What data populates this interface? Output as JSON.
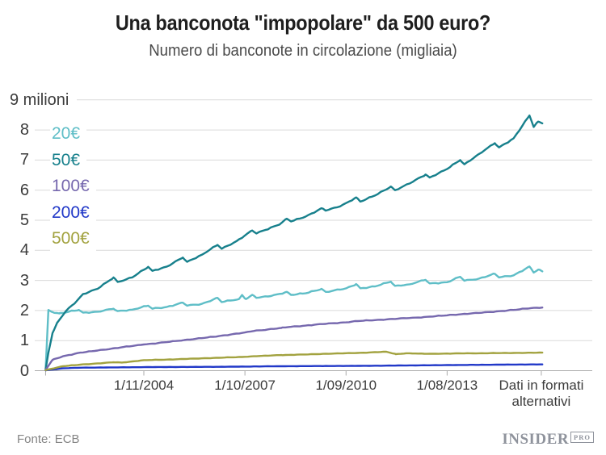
{
  "header": {
    "title": "Una banconota \"impopolare\" da 500 euro?",
    "subtitle": "Numero di banconote in circolazione (migliaia)"
  },
  "footer": {
    "source": "Fonte: ECB",
    "brand": "INSIDER",
    "brand_suffix": "PRO"
  },
  "colors": {
    "grid": "#dadada",
    "axis": "#ababab",
    "text": "#3c3c3c",
    "series_20": "#5fbec7",
    "series_50": "#17808c",
    "series_100": "#7668ae",
    "series_200": "#2138c8",
    "series_500": "#a2a23f"
  },
  "chart_data": {
    "type": "line",
    "title": "Una banconota \"impopolare\" da 500 euro?",
    "subtitle": "Numero di banconote in circolazione (migliaia)",
    "y_top_label": "9 milioni",
    "ylim": [
      0,
      9
    ],
    "y_ticks": [
      "0",
      "1",
      "2",
      "3",
      "4",
      "5",
      "6",
      "7",
      "8"
    ],
    "grid": true,
    "legend_position": "top-left",
    "x_ticks": [
      {
        "label": "1/11/2004",
        "year": 2004.833,
        "link": false
      },
      {
        "label": "1/10/2007",
        "year": 2007.75,
        "link": false
      },
      {
        "label": "1/09/2010",
        "year": 2010.667,
        "link": false
      },
      {
        "label": "1/08/2013",
        "year": 2013.583,
        "link": false
      },
      {
        "label": "Dati in formati alternativi",
        "year": 2016.3,
        "link": true
      }
    ],
    "x_range_years": [
      2001.75,
      2017.8
    ],
    "series": [
      {
        "name": "20€",
        "color": "#5fbec7",
        "wiggle": 0.022,
        "points": [
          [
            2002.0,
            0.05
          ],
          [
            2002.08,
            2.02
          ],
          [
            2002.2,
            1.95
          ],
          [
            2002.4,
            1.9
          ],
          [
            2002.96,
            2.02
          ],
          [
            2003.08,
            1.93
          ],
          [
            2003.5,
            1.96
          ],
          [
            2003.96,
            2.06
          ],
          [
            2004.08,
            1.98
          ],
          [
            2004.5,
            2.03
          ],
          [
            2004.96,
            2.16
          ],
          [
            2005.08,
            2.06
          ],
          [
            2005.5,
            2.12
          ],
          [
            2005.96,
            2.26
          ],
          [
            2006.08,
            2.16
          ],
          [
            2006.5,
            2.22
          ],
          [
            2006.96,
            2.42
          ],
          [
            2007.08,
            2.28
          ],
          [
            2007.58,
            2.38
          ],
          [
            2007.67,
            2.52
          ],
          [
            2007.78,
            2.38
          ],
          [
            2007.96,
            2.52
          ],
          [
            2008.08,
            2.42
          ],
          [
            2008.5,
            2.48
          ],
          [
            2008.96,
            2.62
          ],
          [
            2009.08,
            2.52
          ],
          [
            2009.5,
            2.57
          ],
          [
            2009.96,
            2.72
          ],
          [
            2010.08,
            2.62
          ],
          [
            2010.67,
            2.73
          ],
          [
            2010.96,
            2.88
          ],
          [
            2011.08,
            2.74
          ],
          [
            2011.5,
            2.8
          ],
          [
            2011.96,
            2.96
          ],
          [
            2012.08,
            2.82
          ],
          [
            2012.5,
            2.87
          ],
          [
            2012.96,
            3.02
          ],
          [
            2013.08,
            2.9
          ],
          [
            2013.58,
            2.94
          ],
          [
            2013.96,
            3.12
          ],
          [
            2014.08,
            2.99
          ],
          [
            2014.5,
            3.06
          ],
          [
            2014.96,
            3.22
          ],
          [
            2015.08,
            3.1
          ],
          [
            2015.5,
            3.17
          ],
          [
            2015.96,
            3.46
          ],
          [
            2016.08,
            3.26
          ],
          [
            2016.21,
            3.36
          ],
          [
            2016.33,
            3.3
          ]
        ]
      },
      {
        "name": "50€",
        "color": "#17808c",
        "wiggle": 0.022,
        "points": [
          [
            2002.0,
            0.05
          ],
          [
            2002.08,
            0.6
          ],
          [
            2002.2,
            1.25
          ],
          [
            2002.35,
            1.62
          ],
          [
            2002.6,
            2.0
          ],
          [
            2002.9,
            2.32
          ],
          [
            2003.08,
            2.55
          ],
          [
            2003.5,
            2.72
          ],
          [
            2003.96,
            3.1
          ],
          [
            2004.08,
            2.95
          ],
          [
            2004.5,
            3.1
          ],
          [
            2004.96,
            3.45
          ],
          [
            2005.08,
            3.32
          ],
          [
            2005.5,
            3.46
          ],
          [
            2005.96,
            3.76
          ],
          [
            2006.08,
            3.62
          ],
          [
            2006.5,
            3.85
          ],
          [
            2006.96,
            4.18
          ],
          [
            2007.08,
            4.05
          ],
          [
            2007.5,
            4.3
          ],
          [
            2007.96,
            4.66
          ],
          [
            2008.08,
            4.56
          ],
          [
            2008.77,
            4.88
          ],
          [
            2008.96,
            5.05
          ],
          [
            2009.08,
            4.96
          ],
          [
            2009.5,
            5.12
          ],
          [
            2009.96,
            5.4
          ],
          [
            2010.08,
            5.32
          ],
          [
            2010.5,
            5.46
          ],
          [
            2010.96,
            5.76
          ],
          [
            2011.08,
            5.62
          ],
          [
            2011.5,
            5.82
          ],
          [
            2011.96,
            6.12
          ],
          [
            2012.08,
            6.0
          ],
          [
            2012.5,
            6.22
          ],
          [
            2012.96,
            6.52
          ],
          [
            2013.08,
            6.42
          ],
          [
            2013.58,
            6.7
          ],
          [
            2013.96,
            7.0
          ],
          [
            2014.08,
            6.86
          ],
          [
            2014.5,
            7.2
          ],
          [
            2014.96,
            7.56
          ],
          [
            2015.08,
            7.42
          ],
          [
            2015.5,
            7.72
          ],
          [
            2015.96,
            8.48
          ],
          [
            2016.08,
            8.1
          ],
          [
            2016.21,
            8.28
          ],
          [
            2016.33,
            8.22
          ]
        ]
      },
      {
        "name": "100€",
        "color": "#7668ae",
        "wiggle": 0.013,
        "points": [
          [
            2002.0,
            0.03
          ],
          [
            2002.2,
            0.36
          ],
          [
            2002.5,
            0.48
          ],
          [
            2003.0,
            0.6
          ],
          [
            2003.5,
            0.67
          ],
          [
            2004.0,
            0.75
          ],
          [
            2004.83,
            0.87
          ],
          [
            2005.5,
            0.95
          ],
          [
            2006.0,
            1.02
          ],
          [
            2006.5,
            1.08
          ],
          [
            2007.0,
            1.15
          ],
          [
            2007.75,
            1.27
          ],
          [
            2008.0,
            1.32
          ],
          [
            2008.8,
            1.42
          ],
          [
            2009.0,
            1.45
          ],
          [
            2009.5,
            1.5
          ],
          [
            2010.0,
            1.55
          ],
          [
            2010.67,
            1.61
          ],
          [
            2011.0,
            1.65
          ],
          [
            2011.5,
            1.68
          ],
          [
            2012.0,
            1.72
          ],
          [
            2012.5,
            1.75
          ],
          [
            2013.0,
            1.79
          ],
          [
            2013.58,
            1.84
          ],
          [
            2014.0,
            1.88
          ],
          [
            2014.5,
            1.92
          ],
          [
            2015.0,
            1.97
          ],
          [
            2015.5,
            2.02
          ],
          [
            2016.0,
            2.08
          ],
          [
            2016.33,
            2.1
          ]
        ]
      },
      {
        "name": "200€",
        "color": "#2138c8",
        "wiggle": 0.003,
        "points": [
          [
            2002.0,
            0.01
          ],
          [
            2002.5,
            0.08
          ],
          [
            2003.0,
            0.1
          ],
          [
            2005.0,
            0.12
          ],
          [
            2007.0,
            0.13
          ],
          [
            2009.0,
            0.15
          ],
          [
            2011.0,
            0.16
          ],
          [
            2013.0,
            0.18
          ],
          [
            2014.0,
            0.19
          ],
          [
            2015.0,
            0.2
          ],
          [
            2016.33,
            0.21
          ]
        ]
      },
      {
        "name": "500€",
        "color": "#a2a23f",
        "wiggle": 0.007,
        "points": [
          [
            2002.0,
            0.02
          ],
          [
            2002.5,
            0.15
          ],
          [
            2003.0,
            0.2
          ],
          [
            2003.96,
            0.28
          ],
          [
            2004.2,
            0.27
          ],
          [
            2004.83,
            0.35
          ],
          [
            2005.5,
            0.37
          ],
          [
            2006.0,
            0.39
          ],
          [
            2006.5,
            0.41
          ],
          [
            2007.0,
            0.43
          ],
          [
            2007.75,
            0.46
          ],
          [
            2008.0,
            0.48
          ],
          [
            2008.8,
            0.52
          ],
          [
            2009.5,
            0.54
          ],
          [
            2010.0,
            0.56
          ],
          [
            2010.67,
            0.58
          ],
          [
            2011.0,
            0.59
          ],
          [
            2011.83,
            0.63
          ],
          [
            2012.1,
            0.55
          ],
          [
            2012.4,
            0.58
          ],
          [
            2013.0,
            0.56
          ],
          [
            2013.58,
            0.57
          ],
          [
            2014.5,
            0.58
          ],
          [
            2015.5,
            0.59
          ],
          [
            2016.33,
            0.6
          ]
        ]
      }
    ]
  }
}
